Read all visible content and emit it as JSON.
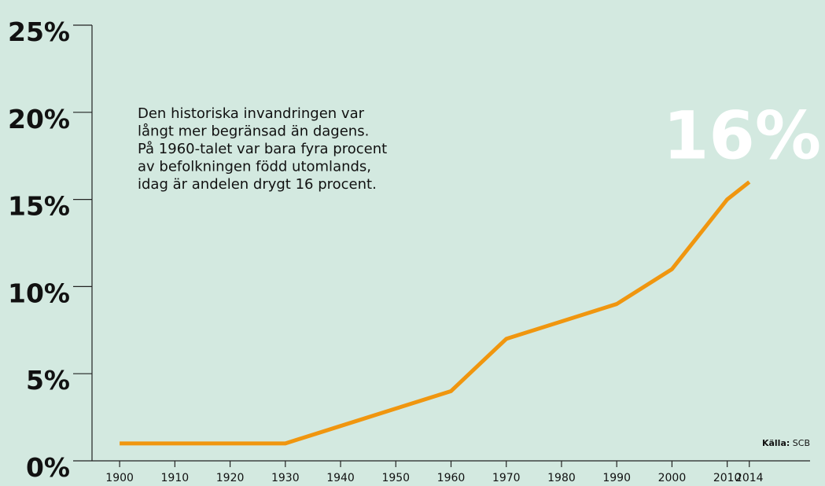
{
  "chart_data": {
    "type": "line",
    "x": [
      1900,
      1910,
      1920,
      1930,
      1940,
      1950,
      1960,
      1970,
      1980,
      1990,
      2000,
      2010,
      2014
    ],
    "values": [
      1,
      1,
      1,
      1,
      2,
      3,
      4,
      7,
      8,
      9,
      11,
      15,
      16
    ],
    "value_labels": [
      null,
      null,
      null,
      null,
      null,
      null,
      null,
      null,
      null,
      null,
      null,
      null,
      "16%"
    ],
    "color": "#f0960f",
    "xlim": [
      1895,
      2025
    ],
    "ylim": [
      0,
      25
    ],
    "xticks": [
      1900,
      1910,
      1920,
      1930,
      1940,
      1950,
      1960,
      1970,
      1980,
      1990,
      2000,
      2010,
      2014
    ],
    "yticks": [
      {
        "value": 0,
        "label": "0%"
      },
      {
        "value": 5,
        "label": "5%"
      },
      {
        "value": 10,
        "label": "10%"
      },
      {
        "value": 15,
        "label": "15%"
      },
      {
        "value": 20,
        "label": "20%"
      },
      {
        "value": 25,
        "label": "25%"
      }
    ],
    "annotation": [
      "Den historiska invandringen var",
      "långt mer begränsad än dagens.",
      "På 1960-talet var bara fyra procent",
      "av befolkningen född utomlands,",
      "idag är andelen drygt 16 procent."
    ],
    "source_label": "Källa:",
    "source": "SCB"
  }
}
